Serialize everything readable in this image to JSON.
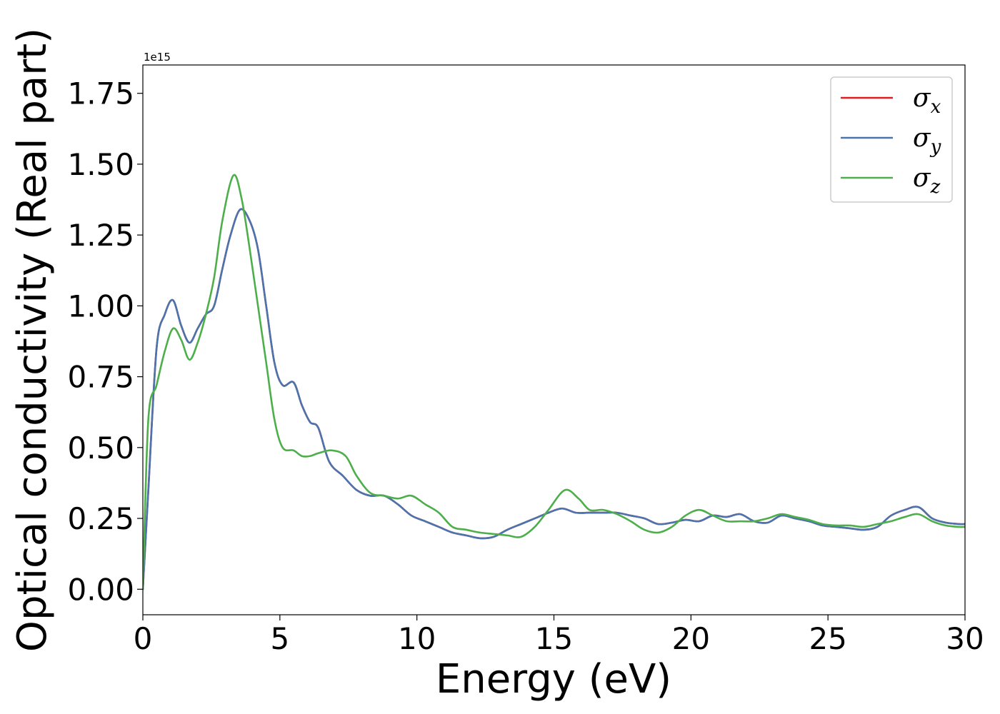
{
  "chart_data": {
    "type": "line",
    "xlabel": "Energy (eV)",
    "ylabel": "Optical conductivity (Real part)",
    "offset_text": "1e15",
    "xlim": [
      0,
      30
    ],
    "ylim": [
      -0.09,
      1.85
    ],
    "x_ticks": [
      0,
      5,
      10,
      15,
      20,
      25,
      30
    ],
    "x_tick_labels": [
      "0",
      "5",
      "10",
      "15",
      "20",
      "25",
      "30"
    ],
    "y_ticks": [
      0.0,
      0.25,
      0.5,
      0.75,
      1.0,
      1.25,
      1.5,
      1.75
    ],
    "y_tick_labels": [
      "0.00",
      "0.25",
      "0.50",
      "0.75",
      "1.00",
      "1.25",
      "1.50",
      "1.75"
    ],
    "grid": false,
    "legend_position": "top-right",
    "series": [
      {
        "name": "σ",
        "subscript": "x",
        "color": "#e41a1c",
        "x": [
          0,
          0.2,
          0.5,
          0.8,
          1.1,
          1.4,
          1.7,
          2.0,
          2.3,
          2.6,
          2.9,
          3.2,
          3.55,
          3.9,
          4.2,
          4.5,
          4.8,
          5.1,
          5.5,
          5.8,
          6.1,
          6.4,
          6.8,
          7.3,
          7.8,
          8.3,
          8.8,
          9.3,
          9.8,
          10.3,
          10.8,
          11.3,
          11.8,
          12.3,
          12.8,
          13.3,
          13.8,
          14.3,
          14.8,
          15.3,
          15.8,
          16.3,
          16.8,
          17.3,
          17.8,
          18.3,
          18.8,
          19.3,
          19.8,
          20.3,
          20.8,
          21.3,
          21.8,
          22.3,
          22.8,
          23.3,
          23.8,
          24.3,
          24.8,
          25.3,
          25.8,
          26.3,
          26.8,
          27.3,
          27.8,
          28.3,
          28.8,
          29.3,
          29.8,
          30.0
        ],
        "y": [
          0.0,
          0.35,
          0.85,
          0.97,
          1.02,
          0.93,
          0.87,
          0.92,
          0.97,
          1.0,
          1.13,
          1.25,
          1.34,
          1.3,
          1.2,
          1.0,
          0.8,
          0.72,
          0.73,
          0.65,
          0.59,
          0.57,
          0.45,
          0.4,
          0.35,
          0.33,
          0.33,
          0.3,
          0.26,
          0.24,
          0.22,
          0.2,
          0.19,
          0.18,
          0.185,
          0.21,
          0.23,
          0.25,
          0.27,
          0.285,
          0.27,
          0.27,
          0.27,
          0.27,
          0.26,
          0.25,
          0.23,
          0.235,
          0.245,
          0.24,
          0.26,
          0.255,
          0.265,
          0.24,
          0.235,
          0.26,
          0.25,
          0.24,
          0.225,
          0.22,
          0.215,
          0.21,
          0.22,
          0.26,
          0.28,
          0.29,
          0.25,
          0.235,
          0.23,
          0.23
        ]
      },
      {
        "name": "σ",
        "subscript": "y",
        "color": "#4a74ad",
        "x": [
          0,
          0.2,
          0.5,
          0.8,
          1.1,
          1.4,
          1.7,
          2.0,
          2.3,
          2.6,
          2.9,
          3.2,
          3.55,
          3.9,
          4.2,
          4.5,
          4.8,
          5.1,
          5.5,
          5.8,
          6.1,
          6.4,
          6.8,
          7.3,
          7.8,
          8.3,
          8.8,
          9.3,
          9.8,
          10.3,
          10.8,
          11.3,
          11.8,
          12.3,
          12.8,
          13.3,
          13.8,
          14.3,
          14.8,
          15.3,
          15.8,
          16.3,
          16.8,
          17.3,
          17.8,
          18.3,
          18.8,
          19.3,
          19.8,
          20.3,
          20.8,
          21.3,
          21.8,
          22.3,
          22.8,
          23.3,
          23.8,
          24.3,
          24.8,
          25.3,
          25.8,
          26.3,
          26.8,
          27.3,
          27.8,
          28.3,
          28.8,
          29.3,
          29.8,
          30.0
        ],
        "y": [
          0.0,
          0.35,
          0.85,
          0.97,
          1.02,
          0.93,
          0.87,
          0.92,
          0.97,
          1.0,
          1.13,
          1.25,
          1.34,
          1.3,
          1.2,
          1.0,
          0.8,
          0.72,
          0.73,
          0.65,
          0.59,
          0.57,
          0.45,
          0.4,
          0.35,
          0.33,
          0.33,
          0.3,
          0.26,
          0.24,
          0.22,
          0.2,
          0.19,
          0.18,
          0.185,
          0.21,
          0.23,
          0.25,
          0.27,
          0.285,
          0.27,
          0.27,
          0.27,
          0.27,
          0.26,
          0.25,
          0.23,
          0.235,
          0.245,
          0.24,
          0.26,
          0.255,
          0.265,
          0.24,
          0.235,
          0.26,
          0.25,
          0.24,
          0.225,
          0.22,
          0.215,
          0.21,
          0.22,
          0.26,
          0.28,
          0.29,
          0.25,
          0.235,
          0.23,
          0.23
        ]
      },
      {
        "name": "σ",
        "subscript": "z",
        "color": "#4daf4a",
        "x": [
          0,
          0.2,
          0.5,
          0.8,
          1.1,
          1.4,
          1.7,
          2.0,
          2.3,
          2.6,
          2.9,
          3.3,
          3.6,
          3.9,
          4.2,
          4.5,
          4.8,
          5.1,
          5.5,
          5.8,
          6.1,
          6.4,
          6.9,
          7.4,
          7.8,
          8.3,
          8.8,
          9.3,
          9.8,
          10.3,
          10.8,
          11.3,
          11.8,
          12.3,
          12.8,
          13.3,
          13.8,
          14.3,
          14.8,
          15.4,
          15.9,
          16.3,
          16.8,
          17.3,
          17.8,
          18.3,
          18.8,
          19.3,
          19.8,
          20.3,
          20.8,
          21.3,
          21.8,
          22.3,
          22.8,
          23.3,
          23.8,
          24.3,
          24.8,
          25.3,
          25.8,
          26.3,
          26.8,
          27.3,
          27.8,
          28.3,
          28.8,
          29.3,
          29.8,
          30.0
        ],
        "y": [
          0.0,
          0.6,
          0.72,
          0.84,
          0.92,
          0.88,
          0.81,
          0.87,
          0.97,
          1.1,
          1.3,
          1.46,
          1.38,
          1.2,
          1.0,
          0.8,
          0.6,
          0.5,
          0.49,
          0.47,
          0.47,
          0.48,
          0.49,
          0.47,
          0.4,
          0.34,
          0.33,
          0.32,
          0.33,
          0.3,
          0.27,
          0.22,
          0.21,
          0.2,
          0.195,
          0.19,
          0.185,
          0.22,
          0.28,
          0.35,
          0.32,
          0.28,
          0.28,
          0.265,
          0.24,
          0.21,
          0.2,
          0.22,
          0.26,
          0.28,
          0.26,
          0.24,
          0.24,
          0.24,
          0.25,
          0.265,
          0.255,
          0.245,
          0.23,
          0.225,
          0.225,
          0.22,
          0.23,
          0.24,
          0.255,
          0.265,
          0.24,
          0.225,
          0.22,
          0.22
        ]
      }
    ]
  }
}
